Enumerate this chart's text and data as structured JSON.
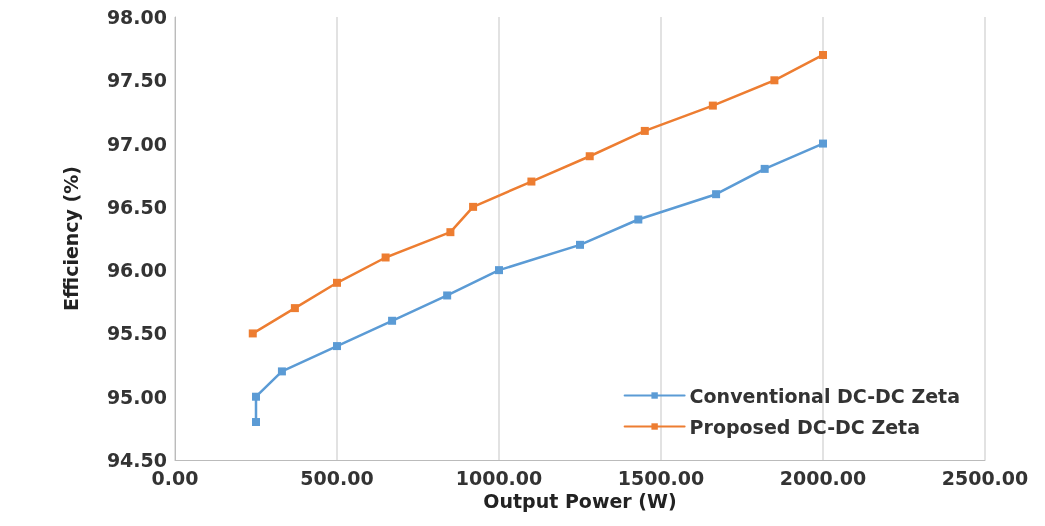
{
  "chart_data": {
    "type": "line",
    "xlabel": "Output Power (W)",
    "ylabel": "Efficiency (%)",
    "xlim": [
      0,
      2500
    ],
    "xticks": [
      {
        "value": 0,
        "label": "0.00"
      },
      {
        "value": 500,
        "label": "500.00"
      },
      {
        "value": 1000,
        "label": "1000.00"
      },
      {
        "value": 1500,
        "label": "1500.00"
      },
      {
        "value": 2000,
        "label": "2000.00"
      },
      {
        "value": 2500,
        "label": "2500.00"
      }
    ],
    "ylim": [
      94.5,
      98
    ],
    "yticks": [
      {
        "value": 94.5,
        "label": "94.50"
      },
      {
        "value": 95,
        "label": "95.00"
      },
      {
        "value": 95.5,
        "label": "95.50"
      },
      {
        "value": 96,
        "label": "96.00"
      },
      {
        "value": 96.5,
        "label": "96.50"
      },
      {
        "value": 97,
        "label": "97.00"
      },
      {
        "value": 97.5,
        "label": "97.50"
      },
      {
        "value": 98,
        "label": "98.00"
      }
    ],
    "grid": "x",
    "legend": "bottom right",
    "marker": "square",
    "line_style": "solid",
    "series": [
      {
        "name": "Conventional DC-DC Zeta",
        "color": "#5b9bd5",
        "x": [
          250,
          250,
          330,
          500,
          670,
          840,
          1000,
          1250,
          1430,
          1670,
          1820,
          2000
        ],
        "values": [
          94.8,
          95.0,
          95.2,
          95.4,
          95.6,
          95.8,
          96.0,
          96.2,
          96.4,
          96.6,
          96.8,
          97.0
        ]
      },
      {
        "name": "Proposed DC-DC Zeta",
        "color": "#ed7d31",
        "x": [
          240,
          370,
          500,
          650,
          850,
          920,
          1100,
          1280,
          1450,
          1660,
          1850,
          2000
        ],
        "values": [
          95.5,
          95.7,
          95.9,
          96.1,
          96.3,
          96.5,
          96.7,
          96.9,
          97.1,
          97.3,
          97.5,
          97.7
        ]
      }
    ]
  }
}
